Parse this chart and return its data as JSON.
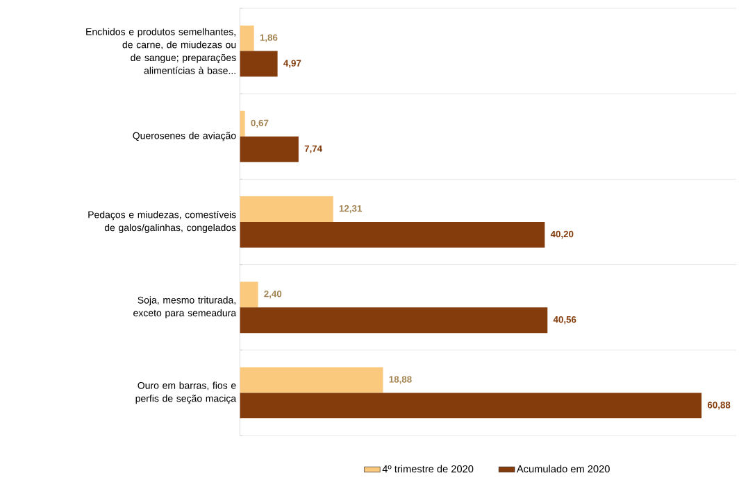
{
  "chart_data": {
    "type": "bar",
    "orientation": "horizontal",
    "grid": "y",
    "legend": "bottom",
    "categories": [
      "Enchidos e produtos semelhantes, de carne, de miudezas ou de sangue; preparações alimentícias à base...",
      "Querosenes de aviação",
      "Pedaços e miudezas, comestíveis de galos/galinhas, congelados",
      "Soja, mesmo triturada, exceto para semeadura",
      "Ouro em barras, fios e perfis de seção maciça"
    ],
    "series": [
      {
        "name": "4º trimestre de 2020",
        "color": "#fbc97d",
        "values": [
          1.86,
          0.67,
          12.31,
          2.4,
          18.88
        ],
        "value_labels": [
          "1,86",
          "0,67",
          "12,31",
          "2,40",
          "18,88"
        ]
      },
      {
        "name": "Acumulado em 2020",
        "color": "#843c0c",
        "values": [
          4.97,
          7.74,
          40.2,
          40.56,
          60.88
        ],
        "value_labels": [
          "4,97",
          "7,74",
          "40,20",
          "40,56",
          "60,88"
        ]
      }
    ]
  }
}
